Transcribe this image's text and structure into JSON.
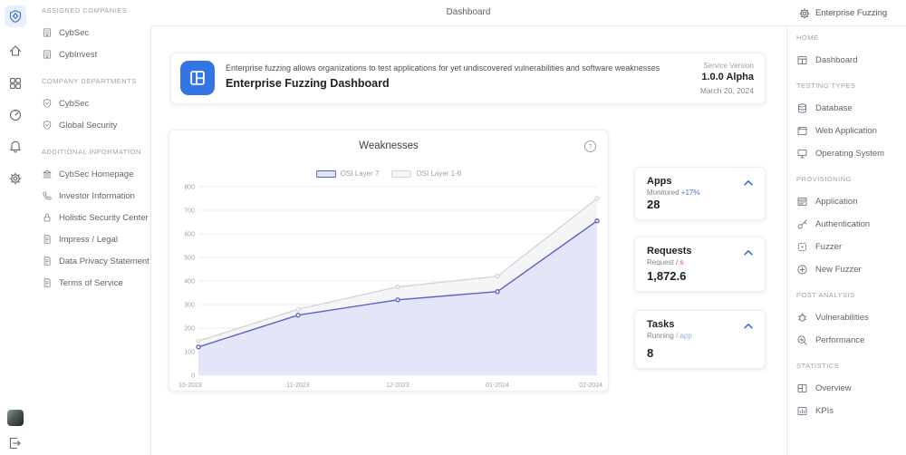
{
  "topbar": {
    "title": "Dashboard",
    "workspace": "Enterprise Fuzzing"
  },
  "left_rail": {
    "icons": [
      {
        "name": "app-logo-icon",
        "icon": "app-logo",
        "active": true
      },
      {
        "name": "home-icon",
        "icon": "home",
        "active": false
      },
      {
        "name": "apps-grid-icon",
        "icon": "grid",
        "active": false
      },
      {
        "name": "gauge-icon",
        "icon": "gauge",
        "active": false
      },
      {
        "name": "notifications-bell-icon",
        "icon": "bell",
        "active": false
      },
      {
        "name": "settings-gear-icon",
        "icon": "gear",
        "active": false
      }
    ]
  },
  "left_menu": {
    "sections": [
      {
        "title": "ASSIGNED COMPANIES",
        "items": [
          {
            "label": "CybSec",
            "icon": "building-icon"
          },
          {
            "label": "CybInvest",
            "icon": "building-icon"
          }
        ]
      },
      {
        "title": "COMPANY DEPARTMENTS",
        "items": [
          {
            "label": "CybSec",
            "icon": "shield-icon"
          },
          {
            "label": "Global Security",
            "icon": "shield-icon"
          }
        ]
      },
      {
        "title": "ADDITIONAL INFORMATION",
        "items": [
          {
            "label": "CybSec Homepage",
            "icon": "bank-icon"
          },
          {
            "label": "Investor Information",
            "icon": "phone-icon"
          },
          {
            "label": "Holistic Security Center",
            "icon": "lock-icon"
          },
          {
            "label": "Impress / Legal",
            "icon": "document-icon"
          },
          {
            "label": "Data Privacy Statement",
            "icon": "document-icon"
          },
          {
            "label": "Terms of Service",
            "icon": "document-icon"
          }
        ]
      }
    ]
  },
  "banner": {
    "description": "Enterprise fuzzing allows organizations to test applications for yet undiscovered vulnerabilities and software weaknesses",
    "title": "Enterprise Fuzzing Dashboard",
    "version_label": "Service Version",
    "version": "1.0.0 Alpha",
    "date": "March 20, 2024"
  },
  "chart_data": {
    "type": "line",
    "title": "Weaknesses",
    "x": [
      "10-2023",
      "11-2023",
      "12-2023",
      "01-2024",
      "02-2024"
    ],
    "series": [
      {
        "name": "OSI Layer 7",
        "values": [
          120,
          255,
          320,
          355,
          655
        ],
        "color": "#5b61c9",
        "fill": "#e3e5f8"
      },
      {
        "name": "OSI Layer 1-6",
        "values": [
          145,
          280,
          375,
          420,
          750
        ],
        "color": "#d5d5db",
        "fill": "#f5f5f8"
      }
    ],
    "ylim": [
      0,
      800
    ],
    "ytick_step": 100,
    "grid": true,
    "legend_position": "top"
  },
  "stat_cards": [
    {
      "title": "Apps",
      "subtitle_prefix": "Monitored",
      "subtitle_highlight": "+17%",
      "highlight_color": "#3575e3",
      "value": "28"
    },
    {
      "title": "Requests",
      "subtitle_prefix": "Request",
      "subtitle_highlight": "/ s",
      "highlight_color": "#e05252",
      "value": "1,872.6"
    },
    {
      "title": "Tasks",
      "subtitle_prefix": "Running",
      "subtitle_highlight": "/ app",
      "highlight_color": "#8ab0ea",
      "value": "8"
    }
  ],
  "right_sidebar": {
    "sections": [
      {
        "title": "HOME",
        "items": [
          {
            "label": "Dashboard",
            "icon": "dashboard-icon"
          }
        ]
      },
      {
        "title": "TESTING TYPES",
        "items": [
          {
            "label": "Database",
            "icon": "database-icon"
          },
          {
            "label": "Web Application",
            "icon": "window-icon"
          },
          {
            "label": "Operating System",
            "icon": "monitor-icon"
          }
        ]
      },
      {
        "title": "PROVISIONING",
        "items": [
          {
            "label": "Application",
            "icon": "app-window-icon"
          },
          {
            "label": "Authentication",
            "icon": "key-icon"
          },
          {
            "label": "Fuzzer",
            "icon": "fuzzer-icon"
          },
          {
            "label": "New Fuzzer",
            "icon": "plus-circle-icon"
          }
        ]
      },
      {
        "title": "POST ANALYSIS",
        "items": [
          {
            "label": "Vulnerabilities",
            "icon": "bug-icon"
          },
          {
            "label": "Performance",
            "icon": "performance-icon"
          }
        ]
      },
      {
        "title": "STATISTICS",
        "items": [
          {
            "label": "Overview",
            "icon": "overview-icon"
          },
          {
            "label": "KPIs",
            "icon": "kpi-icon"
          }
        ]
      }
    ]
  }
}
